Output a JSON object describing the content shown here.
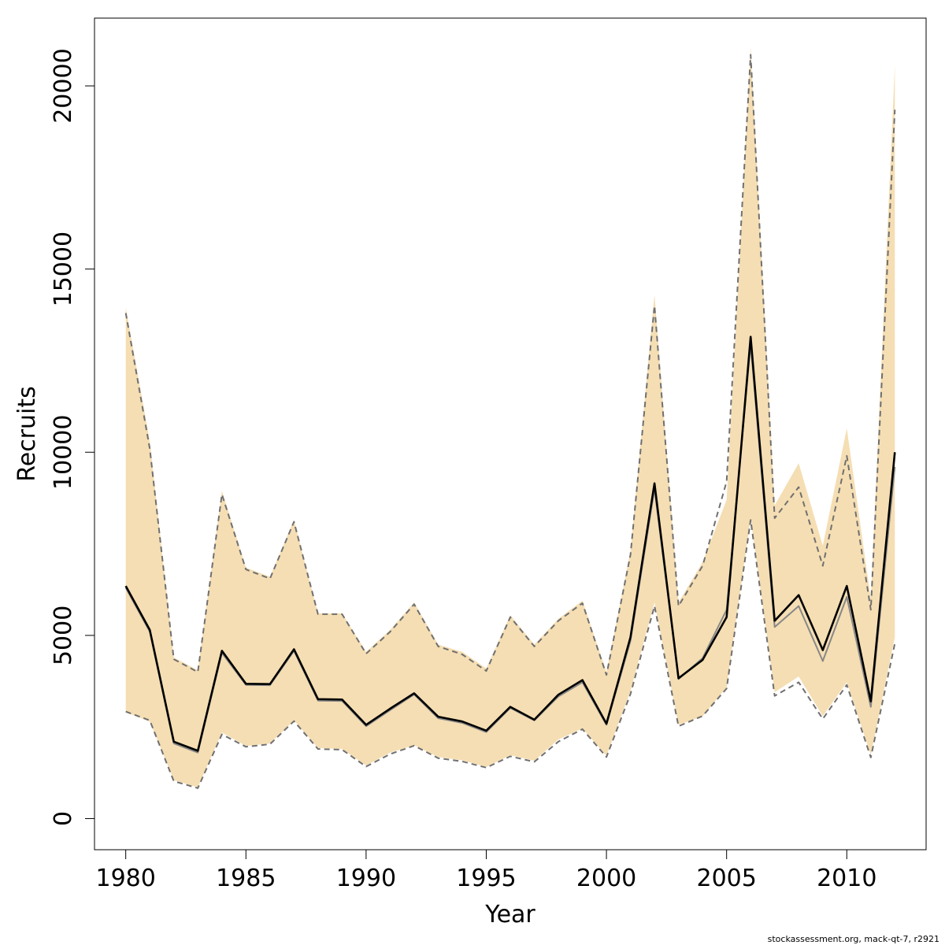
{
  "chart_data": {
    "type": "line",
    "xlabel": "Year",
    "ylabel": "Recruits",
    "xlim": [
      1978.7,
      2013.3
    ],
    "ylim": [
      -850,
      21850
    ],
    "xticks": [
      1980,
      1985,
      1990,
      1995,
      2000,
      2005,
      2010
    ],
    "yticks": [
      0,
      5000,
      10000,
      15000,
      20000
    ],
    "grid": false,
    "legend": "none",
    "credit": "stockassessment.org, mack-qt-7, r2921",
    "x": [
      1980,
      1981,
      1982,
      1983,
      1984,
      1985,
      1986,
      1987,
      1988,
      1989,
      1990,
      1991,
      1992,
      1993,
      1994,
      1995,
      1996,
      1997,
      1998,
      1999,
      2000,
      2001,
      2002,
      2003,
      2004,
      2005,
      2006,
      2007,
      2008,
      2009,
      2010,
      2011,
      2012
    ],
    "band": {
      "color": "#f5deb3",
      "upper": [
        13950,
        10300,
        4400,
        4050,
        8950,
        6850,
        6600,
        8150,
        5600,
        5600,
        4550,
        5150,
        5900,
        4750,
        4550,
        4100,
        5550,
        4750,
        5450,
        5950,
        4000,
        7300,
        14300,
        5900,
        7000,
        8700,
        21050,
        8550,
        9700,
        7450,
        10650,
        6000,
        20550
      ],
      "lower": [
        2900,
        2650,
        1050,
        850,
        2350,
        1980,
        2050,
        2680,
        1930,
        1900,
        1450,
        1800,
        2000,
        1680,
        1590,
        1410,
        1730,
        1580,
        2160,
        2460,
        1710,
        3480,
        5900,
        2560,
        2790,
        3590,
        8200,
        3450,
        3880,
        2800,
        3720,
        1740,
        4950
      ]
    },
    "series": [
      {
        "style": "dashed",
        "color": "#707070",
        "values": [
          13800,
          10100,
          4350,
          4000,
          8850,
          6800,
          6550,
          8100,
          5580,
          5580,
          4500,
          5100,
          5850,
          4700,
          4480,
          4030,
          5500,
          4700,
          5400,
          5880,
          3920,
          7200,
          14000,
          5800,
          6900,
          9200,
          20850,
          8200,
          9050,
          6900,
          9900,
          5700,
          19350
        ]
      },
      {
        "style": "dashed",
        "color": "#707070",
        "values": [
          2920,
          2680,
          1020,
          830,
          2300,
          1960,
          2030,
          2660,
          1900,
          1880,
          1420,
          1760,
          1990,
          1650,
          1560,
          1390,
          1700,
          1550,
          2100,
          2440,
          1680,
          3400,
          5800,
          2520,
          2800,
          3550,
          8150,
          3350,
          3720,
          2720,
          3650,
          1670,
          4780
        ]
      },
      {
        "style": "solid",
        "color": "#888888",
        "values": [
          6300,
          5100,
          2050,
          1800,
          4520,
          3650,
          3640,
          4580,
          3220,
          3210,
          2520,
          2960,
          3390,
          2740,
          2610,
          2360,
          3020,
          2680,
          3330,
          3720,
          2560,
          4850,
          9000,
          3810,
          4380,
          5700,
          12950,
          5230,
          5800,
          4300,
          6050,
          3050,
          9600
        ]
      },
      {
        "style": "solid",
        "color": "#000000",
        "values": [
          6350,
          5150,
          2100,
          1850,
          4580,
          3680,
          3670,
          4620,
          3260,
          3250,
          2560,
          3000,
          3420,
          2780,
          2650,
          2400,
          3050,
          2700,
          3380,
          3780,
          2590,
          4950,
          9150,
          3830,
          4330,
          5500,
          13150,
          5400,
          6100,
          4600,
          6350,
          3200,
          10000
        ]
      }
    ]
  }
}
